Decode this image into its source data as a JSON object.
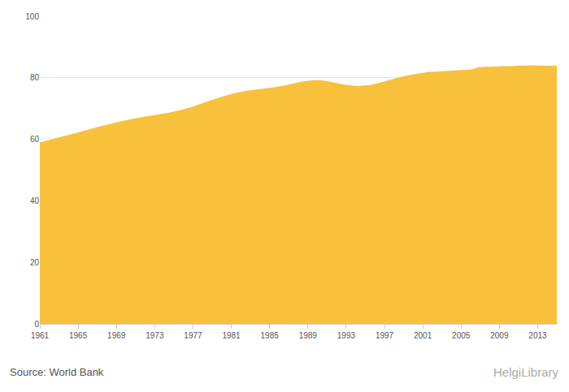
{
  "chart_data": {
    "type": "area",
    "x": [
      1961,
      1962,
      1963,
      1964,
      1965,
      1966,
      1967,
      1968,
      1969,
      1970,
      1971,
      1972,
      1973,
      1974,
      1975,
      1976,
      1977,
      1978,
      1979,
      1980,
      1981,
      1982,
      1983,
      1984,
      1985,
      1986,
      1987,
      1988,
      1989,
      1990,
      1991,
      1992,
      1993,
      1994,
      1995,
      1996,
      1997,
      1998,
      1999,
      2000,
      2001,
      2002,
      2003,
      2004,
      2005,
      2006,
      2007,
      2008,
      2009,
      2010,
      2011,
      2012,
      2013,
      2014,
      2015
    ],
    "values": [
      58.8,
      59.6,
      60.4,
      61.2,
      62.0,
      62.9,
      63.7,
      64.5,
      65.3,
      66.0,
      66.6,
      67.2,
      67.7,
      68.2,
      68.8,
      69.5,
      70.4,
      71.5,
      72.6,
      73.6,
      74.5,
      75.2,
      75.7,
      76.1,
      76.5,
      77.0,
      77.6,
      78.3,
      78.8,
      79.0,
      78.7,
      78.1,
      77.5,
      77.2,
      77.3,
      77.8,
      78.6,
      79.5,
      80.3,
      80.9,
      81.4,
      81.7,
      81.9,
      82.1,
      82.3,
      82.5,
      83.3,
      83.4,
      83.5,
      83.6,
      83.7,
      83.8,
      83.8,
      83.7,
      83.8
    ],
    "color": "#f8c13c",
    "xlim": [
      1961,
      2015
    ],
    "xticks": [
      1961,
      1965,
      1969,
      1973,
      1977,
      1981,
      1985,
      1989,
      1993,
      1997,
      2001,
      2005,
      2009,
      2013
    ],
    "ylim": [
      0,
      100
    ],
    "yticks": [
      0,
      20,
      40,
      60,
      80,
      100
    ],
    "grid": true,
    "annotations": [
      "Source: World Bank",
      "HelgiLibrary"
    ]
  }
}
